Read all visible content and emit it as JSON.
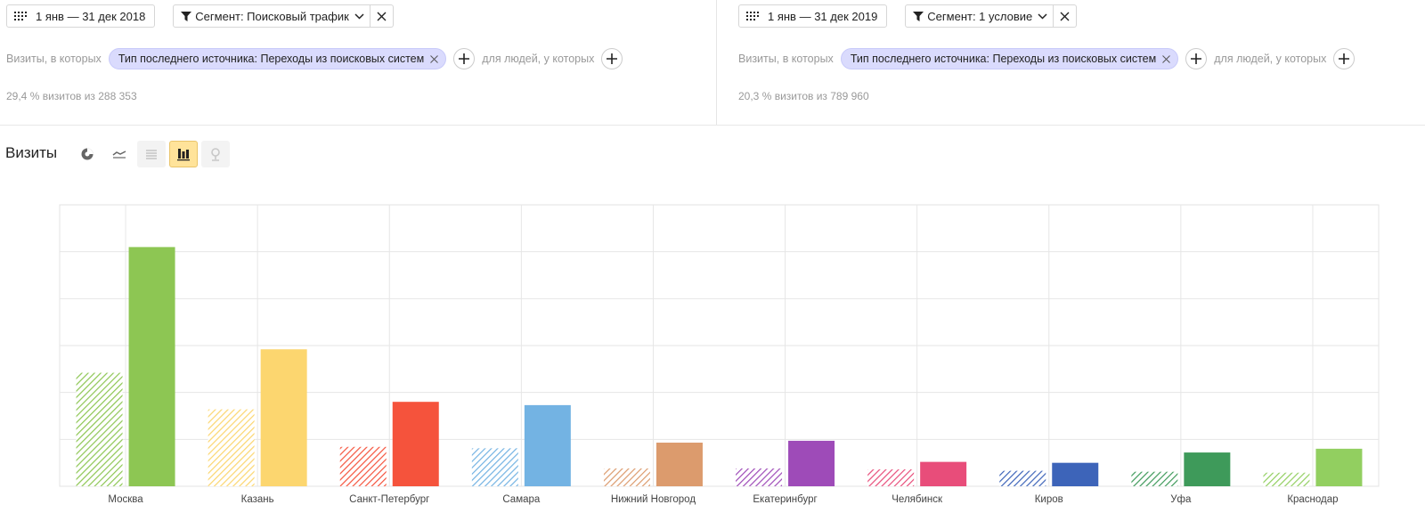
{
  "left_panel": {
    "date_range": "1 янв — 31 дек 2018",
    "segment_label": "Сегмент: Поисковый трафик",
    "cond_prefix": "Визиты, в которых",
    "chip": "Тип последнего источника: Переходы из поисковых систем",
    "cond_people": "для людей, у которых",
    "stat": "29,4 % визитов из 288 353"
  },
  "right_panel": {
    "date_range": "1 янв — 31 дек 2019",
    "segment_label": "Сегмент: 1 условие",
    "cond_prefix": "Визиты, в которых",
    "chip": "Тип последнего источника: Переходы из поисковых систем",
    "cond_people": "для людей, у которых",
    "stat": "20,3 % визитов из 789 960"
  },
  "viz": {
    "title": "Визиты",
    "icons": [
      "pie-chart-icon",
      "line-chart-icon",
      "area-chart-icon",
      "bar-chart-icon",
      "map-icon"
    ],
    "active_icon": "bar-chart-icon"
  },
  "chart_data": {
    "type": "bar",
    "categories": [
      "Москва",
      "Казань",
      "Санкт-Петербург",
      "Самара",
      "Нижний Новгород",
      "Екатеринбург",
      "Челябинск",
      "Киров",
      "Уфа",
      "Краснодар"
    ],
    "series": [
      {
        "values": [
          2.42,
          1.64,
          0.84,
          0.81,
          0.38,
          0.38,
          0.36,
          0.33,
          0.31,
          0.29
        ]
      },
      {
        "values": [
          5.1,
          2.92,
          1.8,
          1.73,
          0.93,
          0.97,
          0.52,
          0.5,
          0.72,
          0.8
        ]
      }
    ],
    "ylim": [
      0,
      6
    ],
    "grid": true,
    "colors": [
      "#8dc653",
      "#fcd66f",
      "#f5533c",
      "#73b3e3",
      "#dc9b6d",
      "#9e4bb8",
      "#e84d7a",
      "#3d64b9",
      "#3e9a5a",
      "#92cf60"
    ]
  }
}
